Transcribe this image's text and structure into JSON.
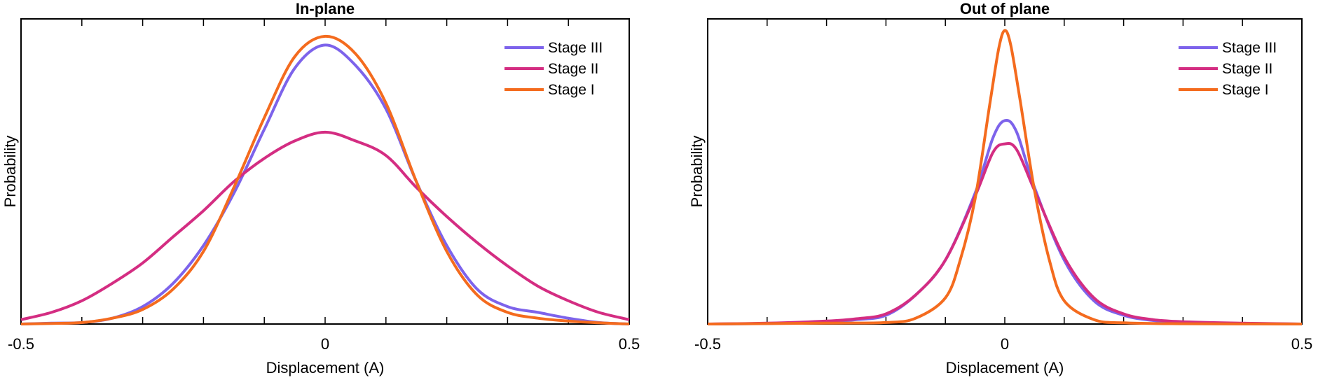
{
  "chart_data": [
    {
      "type": "line",
      "title": "In-plane",
      "xlabel": "Displacement (A)",
      "ylabel": "Probability",
      "xlim": [
        -0.5,
        0.5
      ],
      "ylim": [
        0,
        1.05
      ],
      "x_tick_labels": [
        "-0.5",
        "0",
        "0.5"
      ],
      "grid": false,
      "legend": "top-right",
      "series": [
        {
          "name": "Stage III",
          "color": "#7d63eb",
          "points": [
            [
              -0.5,
              0.0
            ],
            [
              -0.45,
              0.003
            ],
            [
              -0.4,
              0.005
            ],
            [
              -0.35,
              0.02
            ],
            [
              -0.3,
              0.06
            ],
            [
              -0.25,
              0.14
            ],
            [
              -0.2,
              0.27
            ],
            [
              -0.15,
              0.45
            ],
            [
              -0.1,
              0.67
            ],
            [
              -0.05,
              0.88
            ],
            [
              0.0,
              0.96
            ],
            [
              0.05,
              0.89
            ],
            [
              0.1,
              0.74
            ],
            [
              0.15,
              0.49
            ],
            [
              0.2,
              0.27
            ],
            [
              0.25,
              0.12
            ],
            [
              0.3,
              0.06
            ],
            [
              0.35,
              0.04
            ],
            [
              0.4,
              0.02
            ],
            [
              0.45,
              0.005
            ],
            [
              0.5,
              0.0
            ]
          ]
        },
        {
          "name": "Stage II",
          "color": "#d42d82",
          "points": [
            [
              -0.5,
              0.015
            ],
            [
              -0.45,
              0.04
            ],
            [
              -0.4,
              0.08
            ],
            [
              -0.35,
              0.14
            ],
            [
              -0.3,
              0.21
            ],
            [
              -0.25,
              0.3
            ],
            [
              -0.2,
              0.39
            ],
            [
              -0.15,
              0.49
            ],
            [
              -0.1,
              0.57
            ],
            [
              -0.05,
              0.63
            ],
            [
              0.0,
              0.66
            ],
            [
              0.05,
              0.63
            ],
            [
              0.1,
              0.58
            ],
            [
              0.15,
              0.47
            ],
            [
              0.2,
              0.37
            ],
            [
              0.25,
              0.28
            ],
            [
              0.3,
              0.2
            ],
            [
              0.35,
              0.13
            ],
            [
              0.4,
              0.08
            ],
            [
              0.45,
              0.04
            ],
            [
              0.5,
              0.015
            ]
          ]
        },
        {
          "name": "Stage I",
          "color": "#f46b1e",
          "points": [
            [
              -0.5,
              0.0
            ],
            [
              -0.45,
              0.002
            ],
            [
              -0.4,
              0.005
            ],
            [
              -0.35,
              0.02
            ],
            [
              -0.3,
              0.05
            ],
            [
              -0.25,
              0.12
            ],
            [
              -0.2,
              0.25
            ],
            [
              -0.15,
              0.47
            ],
            [
              -0.1,
              0.71
            ],
            [
              -0.05,
              0.92
            ],
            [
              0.0,
              0.99
            ],
            [
              0.05,
              0.93
            ],
            [
              0.1,
              0.76
            ],
            [
              0.15,
              0.49
            ],
            [
              0.2,
              0.25
            ],
            [
              0.25,
              0.1
            ],
            [
              0.3,
              0.04
            ],
            [
              0.35,
              0.02
            ],
            [
              0.4,
              0.01
            ],
            [
              0.45,
              0.004
            ],
            [
              0.5,
              0.0
            ]
          ]
        }
      ]
    },
    {
      "type": "line",
      "title": "Out of plane",
      "xlabel": "Displacement (A)",
      "ylabel": "Probability",
      "xlim": [
        -0.5,
        0.5
      ],
      "ylim": [
        0,
        1.05
      ],
      "x_tick_labels": [
        "-0.5",
        "0",
        "0.5"
      ],
      "grid": false,
      "legend": "top-right",
      "series": [
        {
          "name": "Stage III",
          "color": "#7d63eb",
          "points": [
            [
              -0.5,
              0.0
            ],
            [
              -0.4,
              0.002
            ],
            [
              -0.3,
              0.008
            ],
            [
              -0.25,
              0.015
            ],
            [
              -0.2,
              0.03
            ],
            [
              -0.15,
              0.1
            ],
            [
              -0.1,
              0.22
            ],
            [
              -0.05,
              0.45
            ],
            [
              -0.02,
              0.64
            ],
            [
              0.0,
              0.7
            ],
            [
              0.02,
              0.66
            ],
            [
              0.05,
              0.47
            ],
            [
              0.1,
              0.22
            ],
            [
              0.15,
              0.08
            ],
            [
              0.2,
              0.03
            ],
            [
              0.25,
              0.012
            ],
            [
              0.3,
              0.006
            ],
            [
              0.4,
              0.002
            ],
            [
              0.5,
              0.0
            ]
          ]
        },
        {
          "name": "Stage II",
          "color": "#d42d82",
          "points": [
            [
              -0.5,
              0.0
            ],
            [
              -0.4,
              0.003
            ],
            [
              -0.3,
              0.01
            ],
            [
              -0.25,
              0.018
            ],
            [
              -0.2,
              0.035
            ],
            [
              -0.15,
              0.1
            ],
            [
              -0.1,
              0.22
            ],
            [
              -0.05,
              0.44
            ],
            [
              -0.02,
              0.59
            ],
            [
              0.0,
              0.62
            ],
            [
              0.02,
              0.6
            ],
            [
              0.05,
              0.46
            ],
            [
              0.1,
              0.23
            ],
            [
              0.15,
              0.09
            ],
            [
              0.2,
              0.035
            ],
            [
              0.25,
              0.015
            ],
            [
              0.3,
              0.008
            ],
            [
              0.4,
              0.003
            ],
            [
              0.5,
              0.0
            ]
          ]
        },
        {
          "name": "Stage I",
          "color": "#f46b1e",
          "points": [
            [
              -0.5,
              0.0
            ],
            [
              -0.3,
              0.003
            ],
            [
              -0.2,
              0.005
            ],
            [
              -0.15,
              0.02
            ],
            [
              -0.1,
              0.09
            ],
            [
              -0.075,
              0.22
            ],
            [
              -0.05,
              0.43
            ],
            [
              -0.025,
              0.76
            ],
            [
              -0.01,
              0.95
            ],
            [
              0.0,
              1.01
            ],
            [
              0.01,
              0.96
            ],
            [
              0.025,
              0.78
            ],
            [
              0.05,
              0.46
            ],
            [
              0.075,
              0.22
            ],
            [
              0.1,
              0.08
            ],
            [
              0.15,
              0.015
            ],
            [
              0.2,
              0.004
            ],
            [
              0.3,
              0.001
            ],
            [
              0.5,
              0.0
            ]
          ]
        }
      ]
    }
  ]
}
